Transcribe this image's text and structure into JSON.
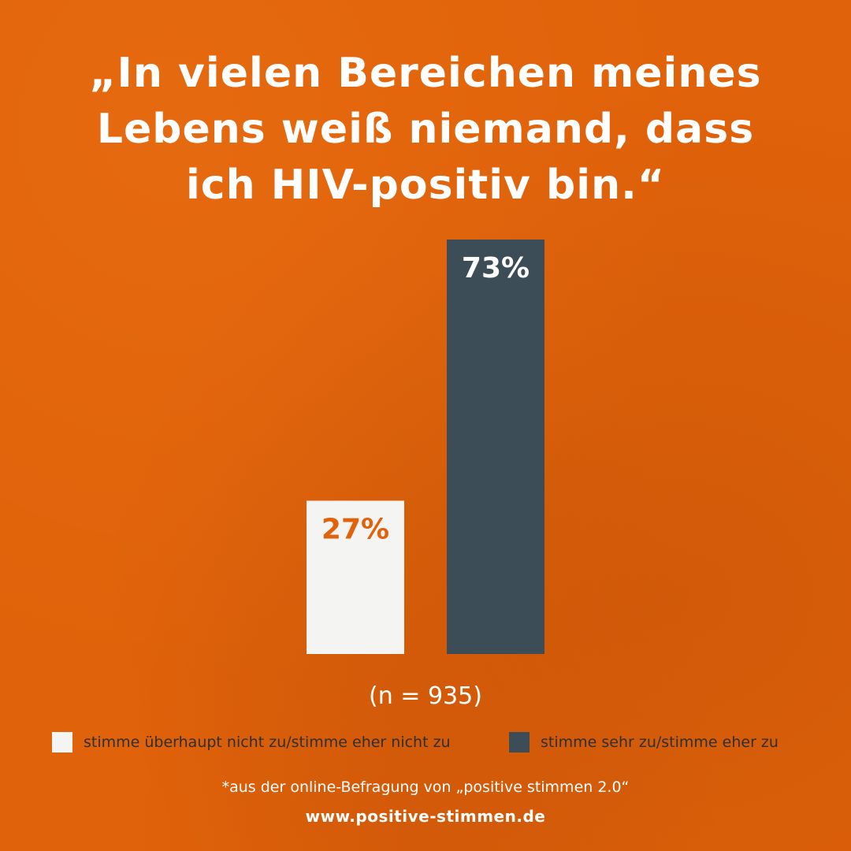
{
  "title": "„In vielen Bereichen meines\nLebens weiß niemand, dass\nich HIV-positiv bin.“",
  "n_label": "(n = 935)",
  "footnote": "*aus der online-Befragung von „positive stimmen 2.0“",
  "url": "www.positive-stimmen.de",
  "colors": {
    "background": "#e0620a",
    "bar_disagree": "#f4f4f2",
    "bar_agree": "#3d4d57",
    "label_on_light": "#e0620a",
    "label_on_dark": "#ffffff"
  },
  "chart_data": {
    "type": "bar",
    "categories": [
      "stimme überhaupt nicht zu/stimme eher nicht zu",
      "stimme sehr zu/stimme eher zu"
    ],
    "values": [
      27,
      73
    ],
    "value_labels": [
      "27%",
      "73%"
    ],
    "title": "„In vielen Bereichen meines Lebens weiß niemand, dass ich HIV-positiv bin.“",
    "xlabel": "",
    "ylabel": "",
    "ylim": [
      0,
      73
    ],
    "grid": false,
    "legend_placement": "bottom"
  },
  "legend": [
    {
      "label": "stimme überhaupt nicht zu/stimme eher nicht zu",
      "color": "#f4f4f2"
    },
    {
      "label": "stimme sehr zu/stimme eher zu",
      "color": "#3d4d57"
    }
  ]
}
